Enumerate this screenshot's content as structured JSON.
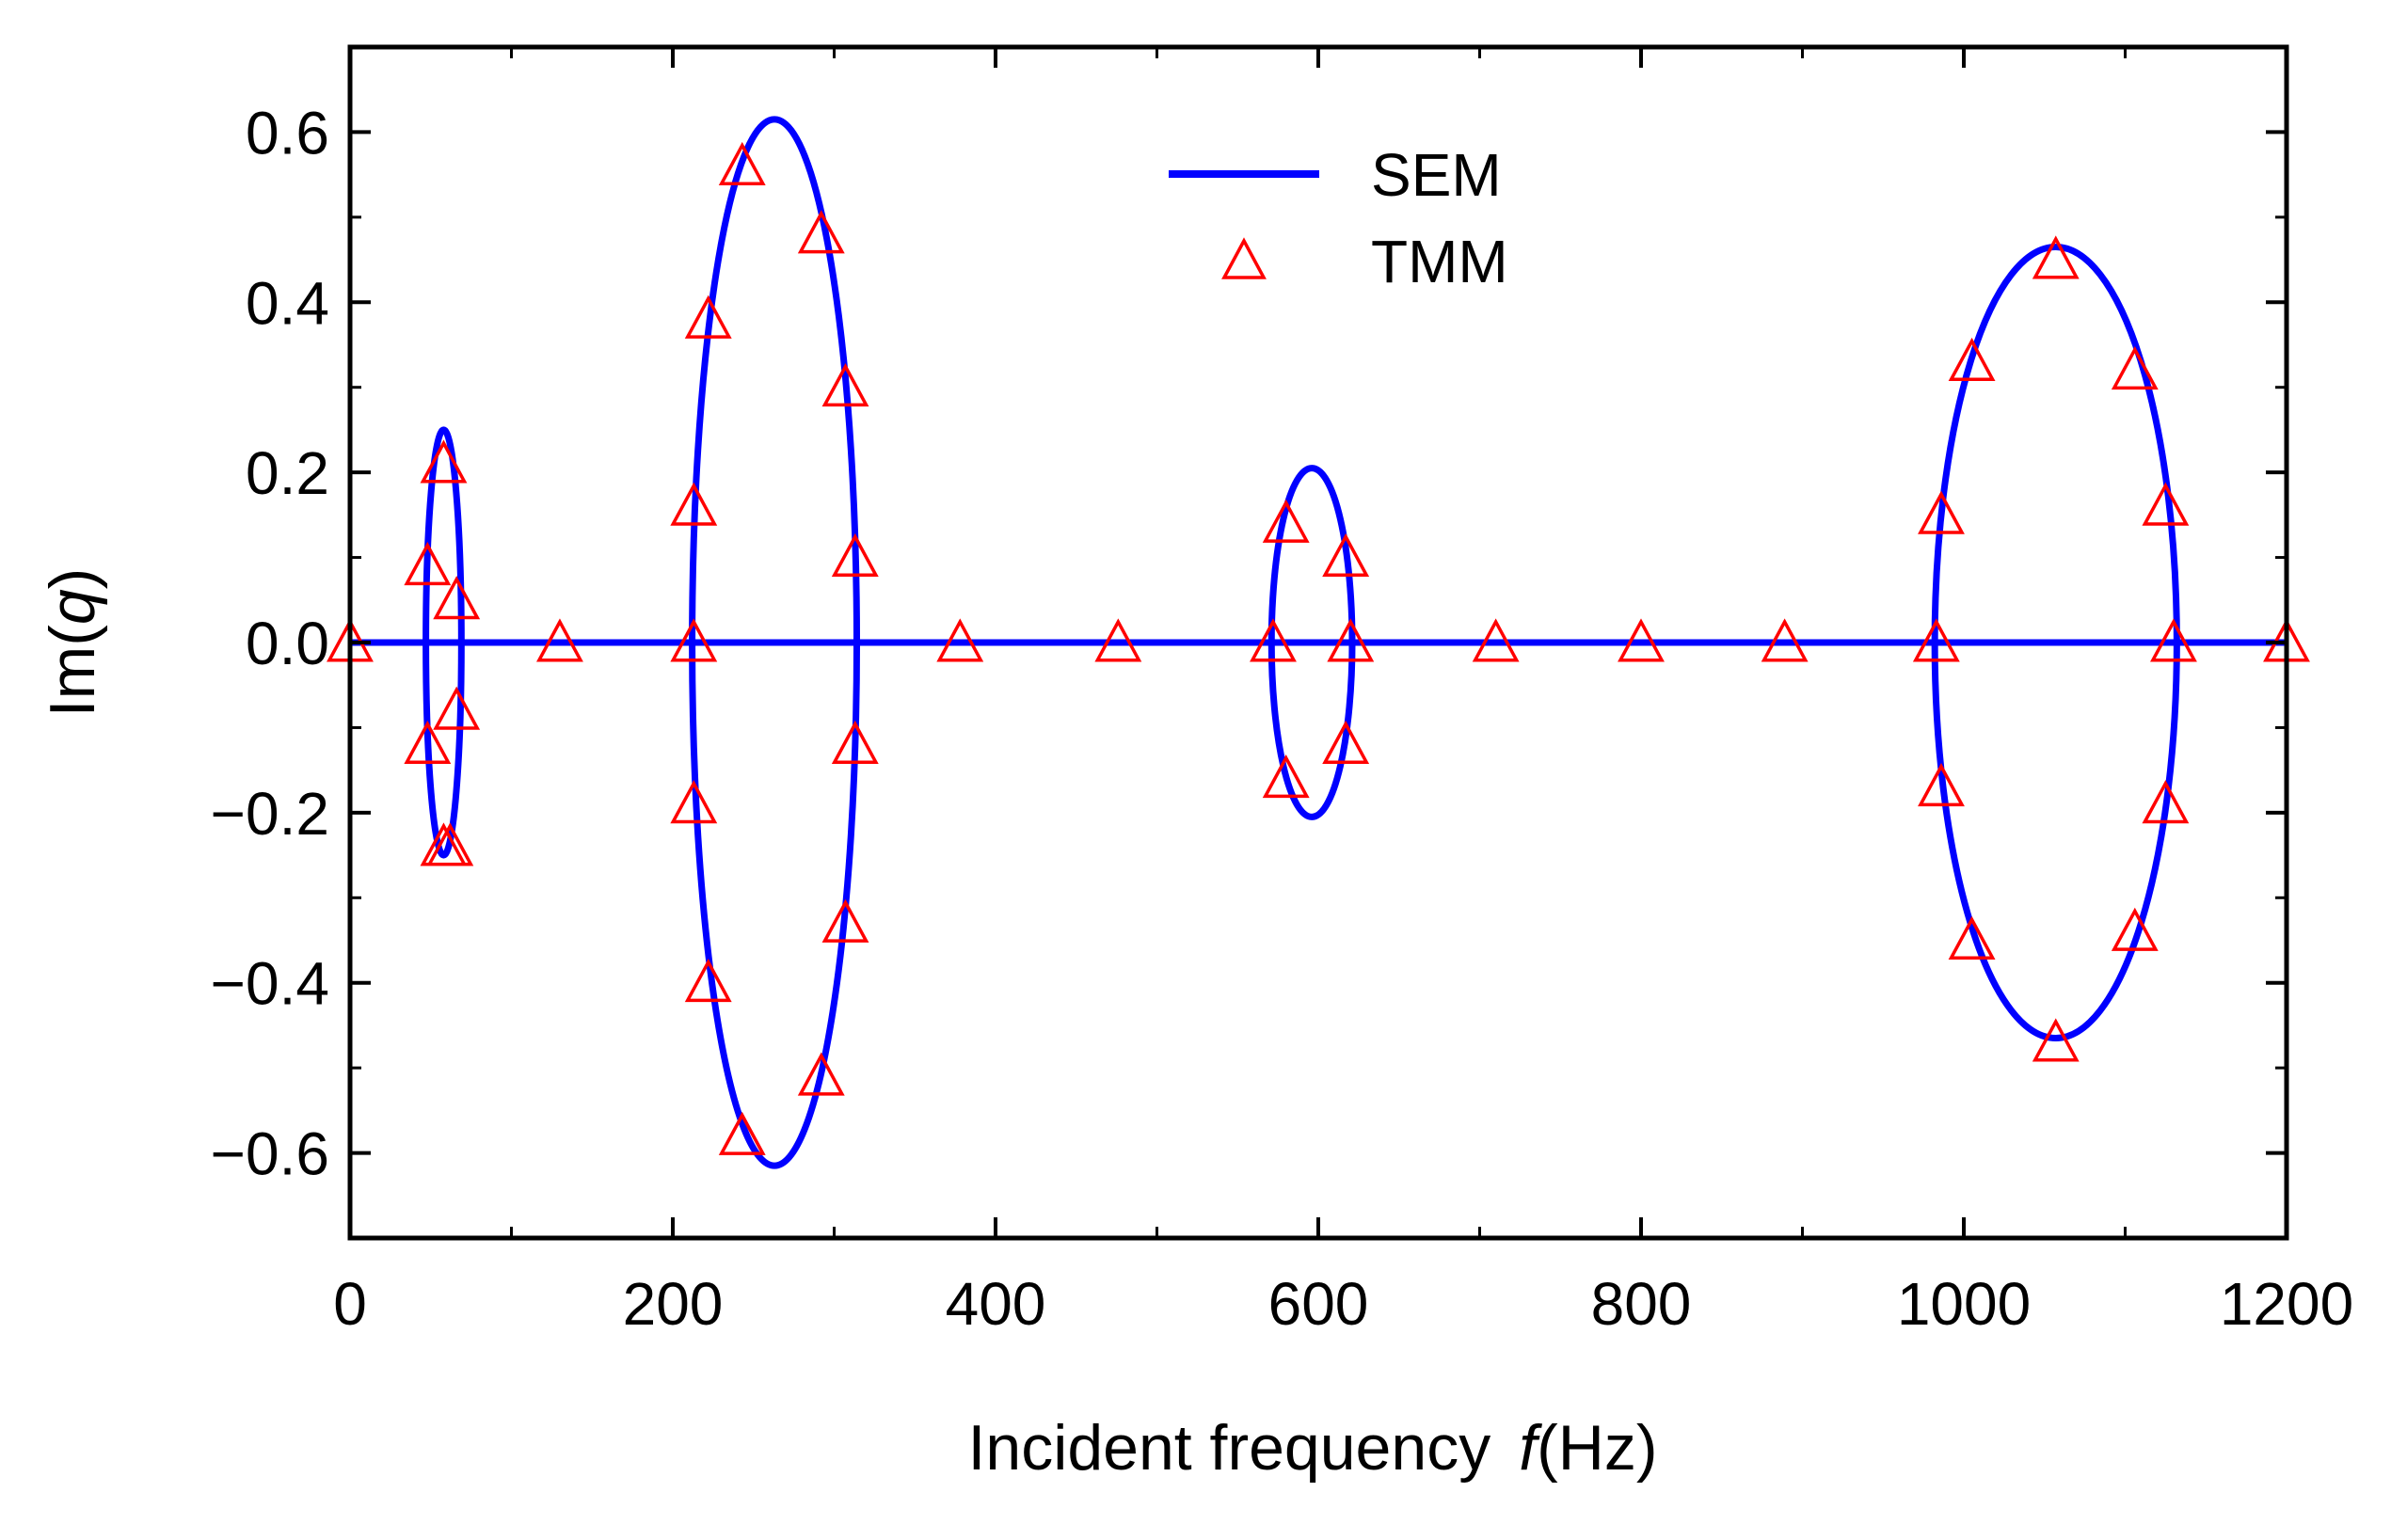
{
  "chart_data": {
    "type": "line",
    "title": "",
    "xlabel": {
      "prefix": "Incident frequency",
      "var": "f",
      "unit": "(Hz)"
    },
    "ylabel": {
      "prefix": "Im(",
      "var": "q",
      "suffix": ")"
    },
    "xlim": [
      0,
      1200
    ],
    "ylim": [
      -0.7,
      0.7
    ],
    "xticks": [
      0,
      200,
      400,
      600,
      800,
      1000,
      1200
    ],
    "yticks": [
      0.6,
      0.4,
      0.2,
      0.0,
      -0.2,
      -0.4,
      -0.6
    ],
    "xtick_labels": [
      "0",
      "200",
      "400",
      "600",
      "800",
      "1000",
      "1200"
    ],
    "ytick_labels": [
      "0.6",
      "0.4",
      "0.2",
      "0.0",
      "−0.2",
      "−0.4",
      "−0.6"
    ],
    "legend_position": "top-center",
    "colors": {
      "sem": "#0000ff",
      "tmm": "#ff0000",
      "axis": "#000000"
    },
    "series": [
      {
        "name": "SEM",
        "style": "line",
        "baseline": {
          "y": 0,
          "x_range": [
            0,
            1200
          ]
        },
        "ellipses": [
          {
            "cx": 58,
            "cy": 0,
            "rx": 11,
            "ry": 0.25
          },
          {
            "cx": 263,
            "cy": 0,
            "rx": 51,
            "ry": 0.615
          },
          {
            "cx": 596,
            "cy": 0,
            "rx": 25,
            "ry": 0.205
          },
          {
            "cx": 1057,
            "cy": 0,
            "rx": 75,
            "ry": 0.465
          }
        ]
      },
      {
        "name": "TMM",
        "style": "open-triangle",
        "points": [
          [
            0,
            0.0
          ],
          [
            130,
            0.0
          ],
          [
            378,
            0.0
          ],
          [
            476,
            0.0
          ],
          [
            710,
            0.0
          ],
          [
            800,
            0.0
          ],
          [
            889,
            0.0
          ],
          [
            1200,
            0.0
          ],
          [
            48,
            0.09
          ],
          [
            48,
            -0.12
          ],
          [
            58,
            0.21
          ],
          [
            58,
            -0.24
          ],
          [
            66,
            0.05
          ],
          [
            66,
            -0.08
          ],
          [
            62,
            -0.24
          ],
          [
            213,
            0.16
          ],
          [
            213,
            0.0
          ],
          [
            213,
            -0.19
          ],
          [
            222,
            0.38
          ],
          [
            222,
            -0.4
          ],
          [
            243,
            0.56
          ],
          [
            243,
            -0.58
          ],
          [
            292,
            0.48
          ],
          [
            292,
            -0.51
          ],
          [
            307,
            0.3
          ],
          [
            307,
            -0.33
          ],
          [
            313,
            0.1
          ],
          [
            313,
            -0.12
          ],
          [
            572,
            0.0
          ],
          [
            580,
            0.14
          ],
          [
            580,
            -0.16
          ],
          [
            617,
            0.1
          ],
          [
            617,
            -0.12
          ],
          [
            620,
            0.0
          ],
          [
            983,
            0.0
          ],
          [
            986,
            0.15
          ],
          [
            986,
            -0.17
          ],
          [
            1005,
            0.33
          ],
          [
            1005,
            -0.35
          ],
          [
            1057,
            0.45
          ],
          [
            1057,
            -0.47
          ],
          [
            1106,
            0.32
          ],
          [
            1106,
            -0.34
          ],
          [
            1125,
            0.16
          ],
          [
            1125,
            -0.19
          ],
          [
            1130,
            0.0
          ]
        ]
      }
    ]
  }
}
